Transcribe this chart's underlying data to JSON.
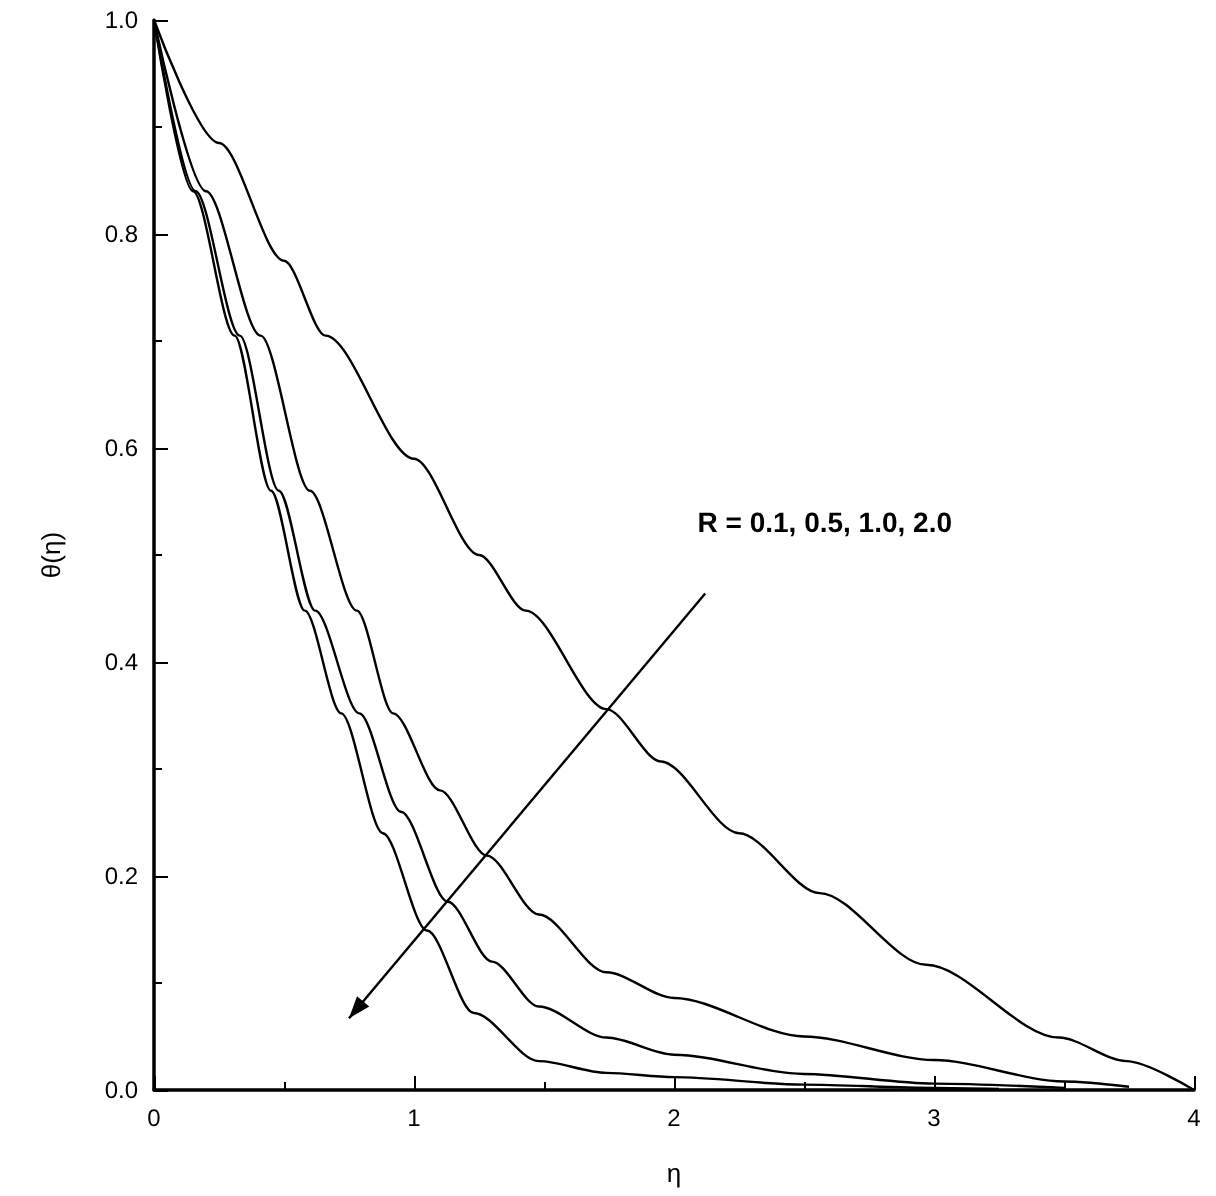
{
  "chart_data": {
    "type": "line",
    "xlabel": "η",
    "ylabel": "θ(η)",
    "annotations": [
      "R = 0.1, 0.5, 1.0, 2.0"
    ],
    "series": [
      {
        "color": "#000000",
        "x": [
          0,
          0.25,
          0.5,
          0.66,
          1,
          1.25,
          1.43,
          1.74,
          1.95,
          2.25,
          2.56,
          2.97,
          3.48,
          3.74,
          4
        ],
        "values": [
          1,
          0.885,
          0.775,
          0.705,
          0.59,
          0.5,
          0.448,
          0.356,
          0.307,
          0.24,
          0.184,
          0.117,
          0.049,
          0.027,
          0
        ]
      },
      {
        "color": "#000000",
        "x": [
          0,
          0.2,
          0.41,
          0.6,
          0.78,
          0.92,
          1.1,
          1.28,
          1.48,
          1.74,
          2,
          2.5,
          3,
          3.5,
          3.75
        ],
        "values": [
          1,
          0.84,
          0.705,
          0.56,
          0.448,
          0.352,
          0.28,
          0.219,
          0.164,
          0.11,
          0.086,
          0.05,
          0.028,
          0.008,
          0.003
        ]
      },
      {
        "color": "#000000",
        "x": [
          0,
          0.16,
          0.33,
          0.48,
          0.62,
          0.79,
          0.95,
          1.13,
          1.3,
          1.48,
          1.74,
          2,
          2.5,
          3,
          3.5
        ],
        "values": [
          1,
          0.84,
          0.705,
          0.56,
          0.448,
          0.352,
          0.26,
          0.176,
          0.12,
          0.078,
          0.049,
          0.033,
          0.015,
          0.006,
          0.002
        ]
      },
      {
        "color": "#000000",
        "x": [
          0,
          0.15,
          0.31,
          0.45,
          0.58,
          0.72,
          0.88,
          1.05,
          1.23,
          1.48,
          1.74,
          2,
          2.5,
          3,
          3.25
        ],
        "values": [
          1,
          0.84,
          0.705,
          0.56,
          0.448,
          0.352,
          0.24,
          0.149,
          0.072,
          0.027,
          0.016,
          0.012,
          0.005,
          0.002,
          0.001
        ]
      }
    ],
    "xlim": [
      0,
      4
    ],
    "xticks": [
      0,
      1,
      2,
      3,
      4
    ],
    "ylim": [
      0,
      1
    ],
    "yticks": [
      {
        "value": 0,
        "label": "0.0"
      },
      {
        "value": 0.2,
        "label": "0.2"
      },
      {
        "value": 0.4,
        "label": "0.4"
      },
      {
        "value": 0.6,
        "label": "0.6"
      },
      {
        "value": 0.8,
        "label": "0.8"
      },
      {
        "value": 1,
        "label": "1.0"
      }
    ],
    "grid": false,
    "marker": "none",
    "line_style": "solid"
  }
}
